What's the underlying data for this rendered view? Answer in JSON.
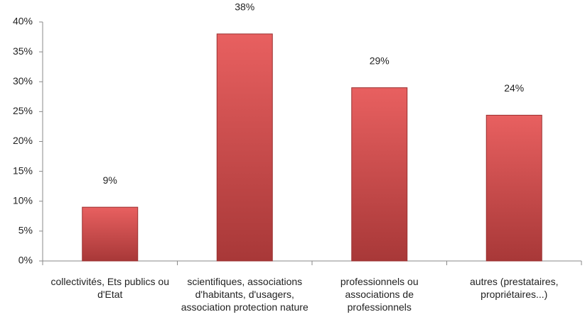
{
  "chart_data": {
    "type": "bar",
    "categories": [
      "collectivités, Ets publics ou d'Etat",
      "scientifiques, associations d'habitants, d'usagers, association protection nature",
      "professionnels ou associations de professionnels",
      "autres (prestataires, propriétaires...)"
    ],
    "values": [
      9,
      38,
      29,
      24.4
    ],
    "value_labels": [
      "9%",
      "38%",
      "29%",
      "24%"
    ],
    "color": "#d94f4f",
    "ylim": [
      0,
      40
    ],
    "yticks": [
      {
        "value": 0,
        "label": "0%"
      },
      {
        "value": 5,
        "label": "5%"
      },
      {
        "value": 10,
        "label": "10%"
      },
      {
        "value": 15,
        "label": "15%"
      },
      {
        "value": 20,
        "label": "20%"
      },
      {
        "value": 25,
        "label": "25%"
      },
      {
        "value": 30,
        "label": "30%"
      },
      {
        "value": 35,
        "label": "35%"
      },
      {
        "value": 40,
        "label": "40%"
      }
    ],
    "grid": false
  }
}
